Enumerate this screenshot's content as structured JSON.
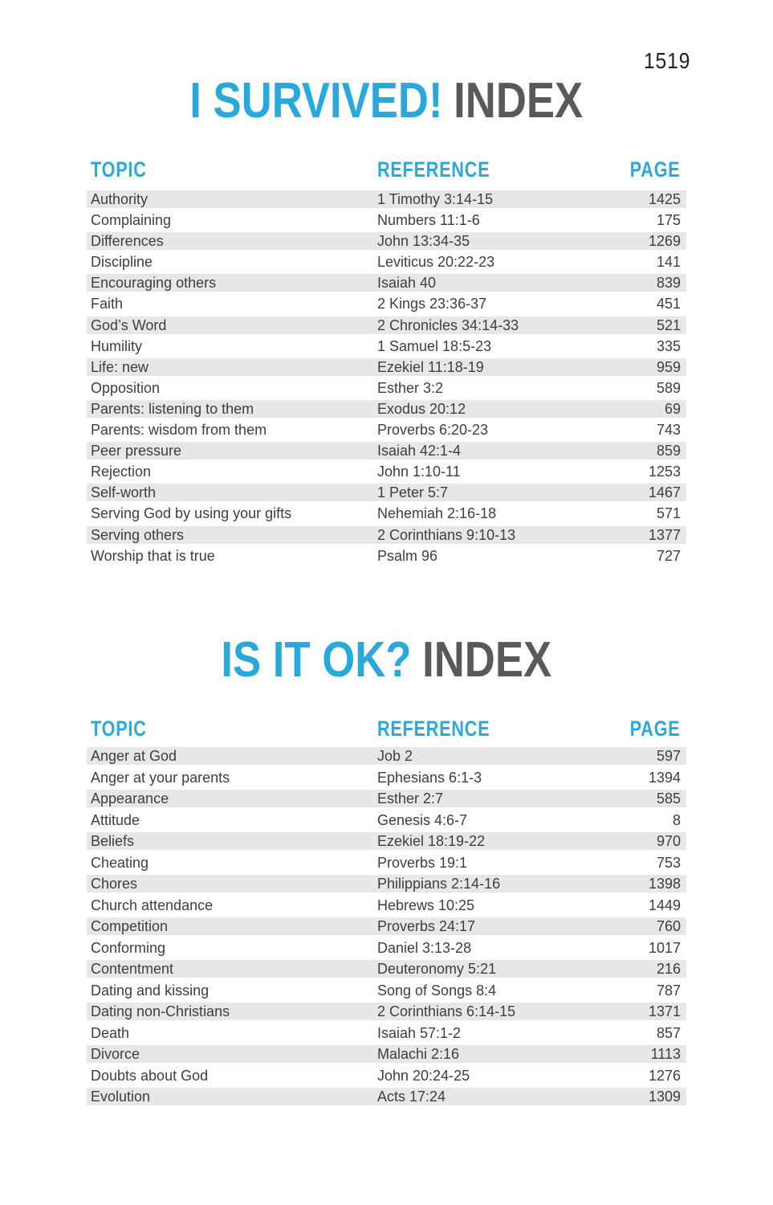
{
  "page_number": "1519",
  "colors": {
    "accent_blue": "#29a8dc",
    "title_gray": "#58595b",
    "row_stripe_gray": "#e7e7e7",
    "body_text": "#3e3e3e",
    "background": "#ffffff"
  },
  "sections": [
    {
      "title_highlight": "I SURVIVED!",
      "title_rest": "INDEX",
      "columns": {
        "topic": "TOPIC",
        "reference": "REFERENCE",
        "page": "PAGE"
      },
      "rows": [
        {
          "topic": "Authority",
          "reference": "1 Timothy 3:14-15",
          "page": "1425"
        },
        {
          "topic": "Complaining",
          "reference": "Numbers 11:1-6",
          "page": "175"
        },
        {
          "topic": "Differences",
          "reference": "John 13:34-35",
          "page": "1269"
        },
        {
          "topic": "Discipline",
          "reference": "Leviticus 20:22-23",
          "page": "141"
        },
        {
          "topic": "Encouraging others",
          "reference": "Isaiah 40",
          "page": "839"
        },
        {
          "topic": "Faith",
          "reference": "2 Kings 23:36-37",
          "page": "451"
        },
        {
          "topic": "God’s Word",
          "reference": "2 Chronicles 34:14-33",
          "page": "521"
        },
        {
          "topic": "Humility",
          "reference": "1 Samuel 18:5-23",
          "page": "335"
        },
        {
          "topic": "Life: new",
          "reference": "Ezekiel 11:18-19",
          "page": "959"
        },
        {
          "topic": "Opposition",
          "reference": "Esther 3:2",
          "page": "589"
        },
        {
          "topic": "Parents: listening to them",
          "reference": "Exodus 20:12",
          "page": "69"
        },
        {
          "topic": "Parents: wisdom from them",
          "reference": "Proverbs 6:20-23",
          "page": "743"
        },
        {
          "topic": "Peer pressure",
          "reference": "Isaiah 42:1-4",
          "page": "859"
        },
        {
          "topic": "Rejection",
          "reference": "John 1:10-11",
          "page": "1253"
        },
        {
          "topic": "Self-worth",
          "reference": "1 Peter 5:7",
          "page": "1467"
        },
        {
          "topic": "Serving God by using your gifts",
          "reference": "Nehemiah 2:16-18",
          "page": "571"
        },
        {
          "topic": "Serving others",
          "reference": "2 Corinthians 9:10-13",
          "page": "1377"
        },
        {
          "topic": "Worship that is true",
          "reference": "Psalm 96",
          "page": "727"
        }
      ]
    },
    {
      "title_highlight": "IS IT OK?",
      "title_rest": "INDEX",
      "columns": {
        "topic": "TOPIC",
        "reference": "REFERENCE",
        "page": "PAGE"
      },
      "rows": [
        {
          "topic": "Anger at God",
          "reference": "Job 2",
          "page": "597"
        },
        {
          "topic": "Anger at your parents",
          "reference": "Ephesians 6:1-3",
          "page": "1394"
        },
        {
          "topic": "Appearance",
          "reference": "Esther 2:7",
          "page": "585"
        },
        {
          "topic": "Attitude",
          "reference": "Genesis 4:6-7",
          "page": "8"
        },
        {
          "topic": "Beliefs",
          "reference": "Ezekiel 18:19-22",
          "page": "970"
        },
        {
          "topic": "Cheating",
          "reference": "Proverbs 19:1",
          "page": "753"
        },
        {
          "topic": "Chores",
          "reference": "Philippians 2:14-16",
          "page": "1398"
        },
        {
          "topic": "Church attendance",
          "reference": "Hebrews 10:25",
          "page": "1449"
        },
        {
          "topic": "Competition",
          "reference": "Proverbs 24:17",
          "page": "760"
        },
        {
          "topic": "Conforming",
          "reference": "Daniel 3:13-28",
          "page": "1017"
        },
        {
          "topic": "Contentment",
          "reference": "Deuteronomy 5:21",
          "page": "216"
        },
        {
          "topic": "Dating and kissing",
          "reference": "Song of Songs 8:4",
          "page": "787"
        },
        {
          "topic": "Dating non-Christians",
          "reference": "2 Corinthians 6:14-15",
          "page": "1371"
        },
        {
          "topic": "Death",
          "reference": "Isaiah 57:1-2",
          "page": "857"
        },
        {
          "topic": "Divorce",
          "reference": "Malachi 2:16",
          "page": "1113"
        },
        {
          "topic": "Doubts about God",
          "reference": "John 20:24-25",
          "page": "1276"
        },
        {
          "topic": "Evolution",
          "reference": "Acts 17:24",
          "page": "1309"
        }
      ]
    }
  ]
}
